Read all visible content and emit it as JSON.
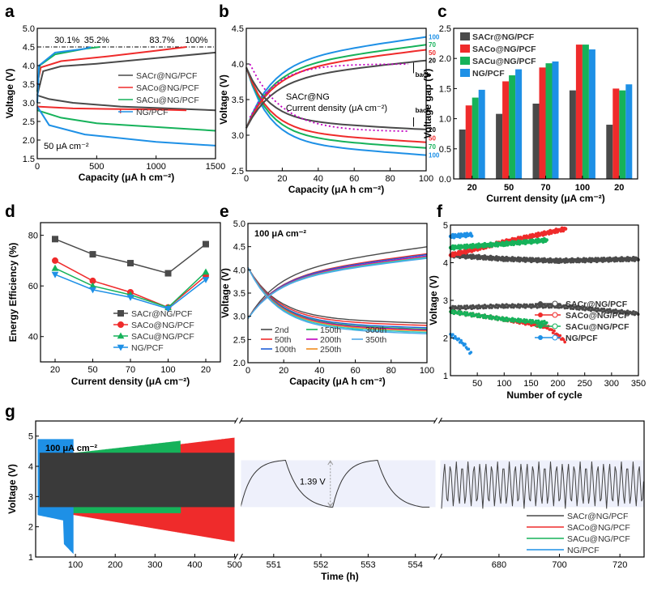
{
  "colors": {
    "cr": "#4a4a4a",
    "co": "#ef2b2b",
    "cu": "#16b25a",
    "ng": "#1e90e6",
    "magenta": "#c000c0"
  },
  "series_names": [
    "SACr@NG/PCF",
    "SACo@NG/PCF",
    "SACu@NG/PCF",
    "NG/PCF"
  ],
  "panel_labels": [
    "a",
    "b",
    "c",
    "d",
    "e",
    "f",
    "g"
  ],
  "chart_data": [
    {
      "panel": "a",
      "type": "line",
      "xlabel": "Capacity (μA h cm⁻²)",
      "ylabel": "Voltage (V)",
      "xlim": [
        0,
        1500
      ],
      "ylim": [
        1.5,
        5.0
      ],
      "xticks": [
        0,
        500,
        1000,
        1500
      ],
      "yticks": [
        1.5,
        2.0,
        2.5,
        3.0,
        3.5,
        4.0,
        4.5,
        5.0
      ],
      "annotations": [
        "30.1%",
        "35.2%",
        "83.7%",
        "100%"
      ],
      "current_label": "50 μA cm⁻²",
      "reference_line_y": 4.5,
      "series": [
        {
          "name": "SACr@NG/PCF",
          "charge": [
            [
              0,
              3.2
            ],
            [
              50,
              3.85
            ],
            [
              200,
              3.98
            ],
            [
              500,
              4.05
            ],
            [
              1000,
              4.2
            ],
            [
              1500,
              4.35
            ]
          ],
          "discharge": [
            [
              0,
              3.2
            ],
            [
              100,
              3.1
            ],
            [
              300,
              3.0
            ],
            [
              700,
              2.9
            ],
            [
              1100,
              2.85
            ],
            [
              1500,
              2.8
            ]
          ]
        },
        {
          "name": "SACo@NG/PCF",
          "charge": [
            [
              0,
              3.5
            ],
            [
              30,
              3.95
            ],
            [
              200,
              4.12
            ],
            [
              600,
              4.25
            ],
            [
              1000,
              4.4
            ],
            [
              1255,
              4.5
            ]
          ],
          "discharge": [
            [
              0,
              2.9
            ],
            [
              300,
              2.85
            ],
            [
              700,
              2.83
            ],
            [
              1000,
              2.82
            ],
            [
              1255,
              2.8
            ]
          ]
        },
        {
          "name": "SACu@NG/PCF",
          "charge": [
            [
              0,
              3.3
            ],
            [
              20,
              4.0
            ],
            [
              150,
              4.3
            ],
            [
              400,
              4.45
            ],
            [
              525,
              4.5
            ]
          ],
          "discharge": [
            [
              0,
              2.8
            ],
            [
              200,
              2.6
            ],
            [
              500,
              2.45
            ],
            [
              1000,
              2.35
            ],
            [
              1500,
              2.25
            ]
          ]
        },
        {
          "name": "NG/PCF",
          "charge": [
            [
              0,
              3.0
            ],
            [
              15,
              4.0
            ],
            [
              150,
              4.35
            ],
            [
              400,
              4.45
            ],
            [
              450,
              4.5
            ]
          ],
          "discharge": [
            [
              0,
              2.9
            ],
            [
              100,
              2.4
            ],
            [
              400,
              2.15
            ],
            [
              1000,
              1.95
            ],
            [
              1500,
              1.85
            ]
          ]
        }
      ]
    },
    {
      "panel": "b",
      "type": "line",
      "xlabel": "Capacity (μA h cm⁻²)",
      "ylabel": "Voltage (V)",
      "xlim": [
        0,
        100
      ],
      "ylim": [
        2.5,
        4.5
      ],
      "xticks": [
        0,
        20,
        40,
        60,
        80,
        100
      ],
      "yticks": [
        2.5,
        3.0,
        3.5,
        4.0,
        4.5
      ],
      "annotation_lines": [
        "SACr@NG",
        "Current density (μA  cm⁻²)"
      ],
      "back_label": "back",
      "current_densities_charge": [
        "100",
        "70",
        "50",
        "20"
      ],
      "current_densities_discharge": [
        "20",
        "50",
        "70",
        "100"
      ],
      "series": [
        {
          "name": "100",
          "charge_end": 4.38,
          "discharge_end": 2.72
        },
        {
          "name": "70",
          "charge_end": 4.27,
          "discharge_end": 2.82
        },
        {
          "name": "50",
          "charge_end": 4.2,
          "discharge_end": 2.9
        },
        {
          "name": "20",
          "charge_end": 4.05,
          "discharge_end": 3.08
        }
      ]
    },
    {
      "panel": "c",
      "type": "bar",
      "xlabel": "Current density (μA cm⁻²)",
      "ylabel": "Voltage gap (V)",
      "categories": [
        "20",
        "50",
        "70",
        "100",
        "20"
      ],
      "ylim": [
        0,
        2.5
      ],
      "yticks": [
        0.0,
        0.5,
        1.0,
        1.5,
        2.0,
        2.5
      ],
      "series": [
        {
          "name": "SACr@NG/PCF",
          "values": [
            0.82,
            1.08,
            1.25,
            1.47,
            0.9
          ]
        },
        {
          "name": "SACo@NG/PCF",
          "values": [
            1.22,
            1.62,
            1.85,
            2.23,
            1.5
          ]
        },
        {
          "name": "SACu@NG/PCF",
          "values": [
            1.35,
            1.72,
            1.92,
            2.23,
            1.47
          ]
        },
        {
          "name": "NG/PCF",
          "values": [
            1.48,
            1.82,
            1.95,
            2.15,
            1.57
          ]
        }
      ]
    },
    {
      "panel": "d",
      "type": "line",
      "xlabel": "Current density (μA cm⁻²)",
      "ylabel": "Energy Efficiency (%)",
      "categories": [
        "20",
        "50",
        "70",
        "100",
        "20"
      ],
      "ylim": [
        30,
        85
      ],
      "yticks": [
        40,
        60,
        80
      ],
      "series": [
        {
          "name": "SACr@NG/PCF",
          "values": [
            78.5,
            72.5,
            69,
            65,
            76.5
          ]
        },
        {
          "name": "SACo@NG/PCF",
          "values": [
            70,
            62,
            57.5,
            51.5,
            64
          ]
        },
        {
          "name": "SACu@NG/PCF",
          "values": [
            67,
            60,
            56.5,
            51.5,
            65.5
          ]
        },
        {
          "name": "NG/PCF",
          "values": [
            64.5,
            58.5,
            55.5,
            51,
            62.5
          ]
        }
      ]
    },
    {
      "panel": "e",
      "type": "line",
      "xlabel": "Capacity (μA h cm⁻²)",
      "ylabel": "Voltage (V)",
      "xlim": [
        0,
        100
      ],
      "ylim": [
        2.0,
        5.0
      ],
      "xticks": [
        0,
        20,
        40,
        60,
        80,
        100
      ],
      "yticks": [
        2.0,
        2.5,
        3.0,
        3.5,
        4.0,
        4.5,
        5.0
      ],
      "current_label": "100 μA cm⁻²",
      "series": [
        {
          "name": "2nd",
          "color": "#4a4a4a",
          "charge_end": 4.5,
          "discharge_end": 2.85
        },
        {
          "name": "50th",
          "color": "#ef2b2b",
          "charge_end": 4.35,
          "discharge_end": 2.8
        },
        {
          "name": "100th",
          "color": "#1e5fd8",
          "charge_end": 4.33,
          "discharge_end": 2.75
        },
        {
          "name": "150th",
          "color": "#16b25a",
          "charge_end": 4.3,
          "discharge_end": 2.72
        },
        {
          "name": "200th",
          "color": "#c000c0",
          "charge_end": 4.3,
          "discharge_end": 2.7
        },
        {
          "name": "250th",
          "color": "#f08a1c",
          "charge_end": 4.28,
          "discharge_end": 2.68
        },
        {
          "name": "300th",
          "color": "#26c7c7",
          "charge_end": 4.27,
          "discharge_end": 2.65
        },
        {
          "name": "350th",
          "color": "#4fa8e8",
          "charge_end": 4.25,
          "discharge_end": 2.62
        }
      ]
    },
    {
      "panel": "f",
      "type": "scatter",
      "xlabel": "Number of cycle",
      "ylabel": "Voltage (V)",
      "xlim": [
        0,
        350
      ],
      "ylim": [
        1,
        5
      ],
      "xticks": [
        50,
        100,
        150,
        200,
        250,
        300,
        350
      ],
      "yticks": [
        1,
        2,
        3,
        4,
        5
      ],
      "series": [
        {
          "name": "SACr@NG/PCF",
          "charge_end_cycle": 350,
          "charge": [
            [
              0,
              4.2
            ],
            [
              100,
              4.1
            ],
            [
              200,
              4.05
            ],
            [
              350,
              4.1
            ]
          ],
          "discharge": [
            [
              0,
              2.8
            ],
            [
              100,
              2.85
            ],
            [
              200,
              2.85
            ],
            [
              350,
              2.65
            ]
          ]
        },
        {
          "name": "SACo@NG/PCF",
          "charge_end_cycle": 215,
          "charge": [
            [
              0,
              4.2
            ],
            [
              100,
              4.55
            ],
            [
              215,
              4.9
            ]
          ],
          "discharge": [
            [
              0,
              2.7
            ],
            [
              100,
              2.5
            ],
            [
              180,
              2.3
            ],
            [
              215,
              1.9
            ]
          ]
        },
        {
          "name": "SACu@NG/PCF",
          "charge_end_cycle": 180,
          "charge": [
            [
              0,
              4.4
            ],
            [
              100,
              4.5
            ],
            [
              180,
              4.6
            ]
          ],
          "discharge": [
            [
              0,
              2.7
            ],
            [
              100,
              2.5
            ],
            [
              180,
              2.4
            ]
          ]
        },
        {
          "name": "NG/PCF",
          "charge_end_cycle": 40,
          "charge": [
            [
              0,
              4.7
            ],
            [
              40,
              4.75
            ]
          ],
          "discharge": [
            [
              0,
              2.1
            ],
            [
              25,
              1.85
            ],
            [
              40,
              1.55
            ]
          ]
        }
      ]
    },
    {
      "panel": "g",
      "type": "line",
      "xlabel": "Time (h)",
      "ylabel": "Voltage (V)",
      "ylim": [
        1,
        5.5
      ],
      "yticks": [
        1,
        2,
        3,
        4,
        5
      ],
      "segments": [
        {
          "xlim": [
            0,
            505
          ],
          "xticks": [
            100,
            200,
            300,
            400,
            500
          ]
        },
        {
          "xlim": [
            550.3,
            554.4
          ],
          "xticks": [
            551,
            552,
            553,
            554
          ]
        },
        {
          "xlim": [
            661,
            728
          ],
          "xticks": [
            680,
            700,
            720
          ]
        }
      ],
      "current_label": "100 μA cm⁻²",
      "gap_label": "1.39 V",
      "lifetimes_h": {
        "SACr@NG/PCF": 728,
        "SACo@NG/PCF": 500,
        "SACu@NG/PCF": 365,
        "NG/PCF": 95
      }
    }
  ]
}
